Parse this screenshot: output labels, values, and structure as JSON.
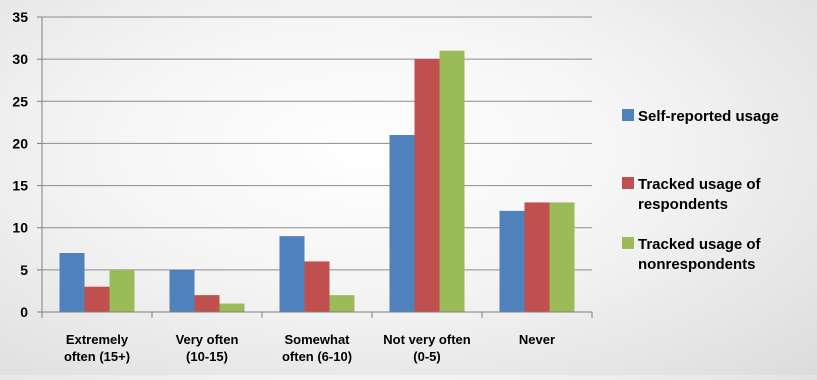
{
  "chart_data": {
    "type": "bar",
    "title": "",
    "xlabel": "",
    "ylabel": "",
    "ylim": [
      0,
      35
    ],
    "yticks": [
      0,
      5,
      10,
      15,
      20,
      25,
      30,
      35
    ],
    "grid": true,
    "legend_position": "right",
    "categories": [
      [
        "Extremely",
        "often (15+)"
      ],
      [
        "Very often",
        "(10-15)"
      ],
      [
        "Somewhat",
        "often (6-10)"
      ],
      [
        "Not very often",
        "(0-5)"
      ],
      [
        "Never"
      ]
    ],
    "series": [
      {
        "name": [
          "Self-reported usage"
        ],
        "color": "#4f81bd",
        "values": [
          7,
          5,
          9,
          21,
          12
        ]
      },
      {
        "name": [
          "Tracked usage of",
          "respondents"
        ],
        "color": "#c0504d",
        "values": [
          3,
          2,
          6,
          30,
          13
        ]
      },
      {
        "name": [
          "Tracked usage of",
          "nonrespondents"
        ],
        "color": "#9bbb59",
        "values": [
          5,
          1,
          2,
          31,
          13
        ]
      }
    ]
  }
}
